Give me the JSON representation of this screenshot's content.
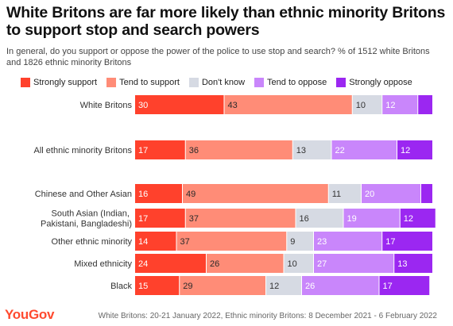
{
  "title": "White Britons are far more likely than ethnic minority Britons to support stop and search powers",
  "subtitle": "In general, do you support or oppose the power of the police to use stop and search? % of 1512 white Britons and 1826 ethnic minority Britons",
  "source": "White Britons: 20-21 January 2022, Ethnic minority Britons: 8 December 2021 - 6 February 2022",
  "logo": "YouGov",
  "chart_data": {
    "type": "bar",
    "orientation": "horizontal",
    "stacked": true,
    "legend_position": "top",
    "categories": [
      "White Britons",
      "All ethnic minority Britons",
      "Chinese and Other Asian",
      "South Asian (Indian, Pakistani, Bangladeshi)",
      "Other ethnic minority",
      "Mixed ethnicity",
      "Black"
    ],
    "series": [
      {
        "name": "Strongly support",
        "color": "#ff412c",
        "values": [
          30,
          17,
          16,
          17,
          14,
          24,
          15
        ]
      },
      {
        "name": "Tend to support",
        "color": "#ff8c77",
        "values": [
          43,
          36,
          49,
          37,
          37,
          26,
          29
        ]
      },
      {
        "name": "Don't know",
        "color": "#d6dae3",
        "values": [
          10,
          13,
          11,
          16,
          9,
          10,
          12
        ]
      },
      {
        "name": "Tend to oppose",
        "color": "#c986fb",
        "values": [
          12,
          22,
          20,
          19,
          23,
          27,
          26
        ]
      },
      {
        "name": "Strongly oppose",
        "color": "#9b27f1",
        "values": [
          5,
          12,
          4,
          12,
          17,
          13,
          17
        ]
      }
    ],
    "label_hidden_below": 6
  }
}
